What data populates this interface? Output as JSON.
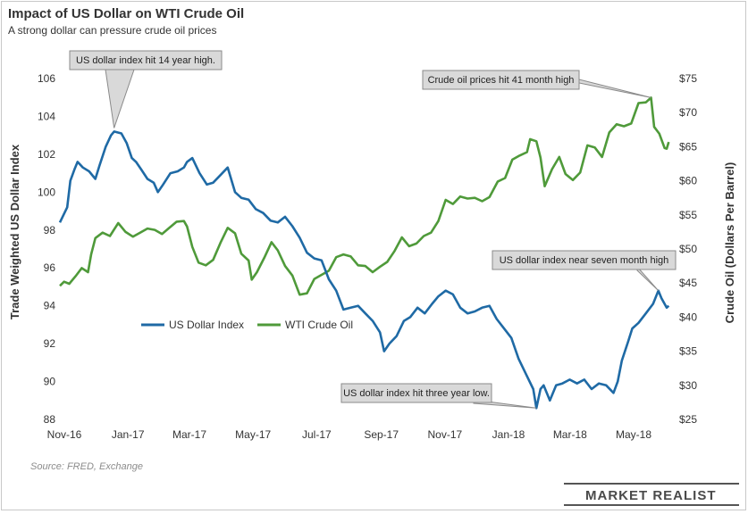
{
  "title": "Impact of US Dollar on WTI Crude Oil",
  "subtitle": "A strong dollar can pressure crude oil prices",
  "source": "Source: FRED, Exchange",
  "brand": "MARKET REALIST",
  "colors": {
    "dollar": "#1f6aa5",
    "oil": "#4f9a3a",
    "callout_fill": "#d9d9d9",
    "callout_stroke": "#8a8a8a"
  },
  "chart_data": {
    "type": "line",
    "x_tick_labels": [
      "Nov-16",
      "Jan-17",
      "Mar-17",
      "May-17",
      "Jul-17",
      "Sep-17",
      "Nov-17",
      "Jan-18",
      "Mar-18",
      "May-18"
    ],
    "y_left": {
      "label": "Trade Weighted US Dollar Index",
      "min": 88,
      "max": 106,
      "ticks": [
        "88",
        "90",
        "92",
        "94",
        "96",
        "98",
        "100",
        "102",
        "104",
        "106"
      ]
    },
    "y_right": {
      "label": "Crude Oil (Dollars  Per Barrel)",
      "min": 25,
      "max": 75,
      "ticks": [
        "$25",
        "$30",
        "$35",
        "$40",
        "$45",
        "$50",
        "$55",
        "$60",
        "$65",
        "$70",
        "$75"
      ]
    },
    "grid": false,
    "legend": {
      "position": "center-left"
    },
    "series": [
      {
        "name": "US Dollar Index",
        "axis": "left",
        "points": [
          [
            "2016-11-01",
            98.4
          ],
          [
            "2016-11-08",
            99.2
          ],
          [
            "2016-11-11",
            100.6
          ],
          [
            "2016-11-15",
            101.2
          ],
          [
            "2016-11-18",
            101.6
          ],
          [
            "2016-11-23",
            101.3
          ],
          [
            "2016-11-29",
            101.1
          ],
          [
            "2016-12-05",
            100.7
          ],
          [
            "2016-12-09",
            101.4
          ],
          [
            "2016-12-15",
            102.4
          ],
          [
            "2016-12-20",
            103.0
          ],
          [
            "2016-12-23",
            103.2
          ],
          [
            "2016-12-30",
            103.1
          ],
          [
            "2017-01-04",
            102.6
          ],
          [
            "2017-01-09",
            101.8
          ],
          [
            "2017-01-13",
            101.6
          ],
          [
            "2017-01-18",
            101.2
          ],
          [
            "2017-01-24",
            100.7
          ],
          [
            "2017-01-30",
            100.5
          ],
          [
            "2017-02-03",
            100.0
          ],
          [
            "2017-02-08",
            100.4
          ],
          [
            "2017-02-15",
            101.0
          ],
          [
            "2017-02-22",
            101.1
          ],
          [
            "2017-02-28",
            101.3
          ],
          [
            "2017-03-03",
            101.6
          ],
          [
            "2017-03-08",
            101.8
          ],
          [
            "2017-03-15",
            101.0
          ],
          [
            "2017-03-22",
            100.4
          ],
          [
            "2017-03-28",
            100.5
          ],
          [
            "2017-04-04",
            100.9
          ],
          [
            "2017-04-11",
            101.3
          ],
          [
            "2017-04-18",
            100.0
          ],
          [
            "2017-04-24",
            99.7
          ],
          [
            "2017-05-01",
            99.6
          ],
          [
            "2017-05-08",
            99.1
          ],
          [
            "2017-05-15",
            98.9
          ],
          [
            "2017-05-22",
            98.5
          ],
          [
            "2017-05-29",
            98.4
          ],
          [
            "2017-06-05",
            98.7
          ],
          [
            "2017-06-12",
            98.2
          ],
          [
            "2017-06-19",
            97.6
          ],
          [
            "2017-06-26",
            96.8
          ],
          [
            "2017-07-03",
            96.5
          ],
          [
            "2017-07-10",
            96.4
          ],
          [
            "2017-07-17",
            95.4
          ],
          [
            "2017-07-24",
            94.8
          ],
          [
            "2017-07-31",
            93.8
          ],
          [
            "2017-08-07",
            93.9
          ],
          [
            "2017-08-14",
            94.0
          ],
          [
            "2017-08-21",
            93.6
          ],
          [
            "2017-08-28",
            93.2
          ],
          [
            "2017-09-04",
            92.6
          ],
          [
            "2017-09-08",
            91.6
          ],
          [
            "2017-09-13",
            92.0
          ],
          [
            "2017-09-20",
            92.4
          ],
          [
            "2017-09-27",
            93.2
          ],
          [
            "2017-10-03",
            93.4
          ],
          [
            "2017-10-10",
            93.9
          ],
          [
            "2017-10-17",
            93.6
          ],
          [
            "2017-10-24",
            94.1
          ],
          [
            "2017-10-30",
            94.5
          ],
          [
            "2017-11-06",
            94.8
          ],
          [
            "2017-11-13",
            94.6
          ],
          [
            "2017-11-20",
            93.9
          ],
          [
            "2017-11-27",
            93.6
          ],
          [
            "2017-12-04",
            93.7
          ],
          [
            "2017-12-11",
            93.9
          ],
          [
            "2017-12-18",
            94.0
          ],
          [
            "2017-12-25",
            93.3
          ],
          [
            "2018-01-01",
            92.8
          ],
          [
            "2018-01-08",
            92.3
          ],
          [
            "2018-01-15",
            91.2
          ],
          [
            "2018-01-22",
            90.4
          ],
          [
            "2018-01-29",
            89.6
          ],
          [
            "2018-02-01",
            88.6
          ],
          [
            "2018-02-05",
            89.6
          ],
          [
            "2018-02-08",
            89.8
          ],
          [
            "2018-02-14",
            89.0
          ],
          [
            "2018-02-20",
            89.8
          ],
          [
            "2018-02-26",
            89.9
          ],
          [
            "2018-03-05",
            90.1
          ],
          [
            "2018-03-12",
            89.9
          ],
          [
            "2018-03-19",
            90.1
          ],
          [
            "2018-03-26",
            89.6
          ],
          [
            "2018-04-02",
            89.9
          ],
          [
            "2018-04-09",
            89.8
          ],
          [
            "2018-04-16",
            89.4
          ],
          [
            "2018-04-20",
            90.0
          ],
          [
            "2018-04-24",
            91.1
          ],
          [
            "2018-04-30",
            92.1
          ],
          [
            "2018-05-04",
            92.8
          ],
          [
            "2018-05-10",
            93.1
          ],
          [
            "2018-05-17",
            93.6
          ],
          [
            "2018-05-24",
            94.1
          ],
          [
            "2018-05-29",
            94.8
          ],
          [
            "2018-06-01",
            94.4
          ],
          [
            "2018-06-06",
            93.9
          ],
          [
            "2018-06-08",
            94.0
          ]
        ]
      },
      {
        "name": "WTI Crude Oil",
        "axis": "right",
        "points": [
          [
            "2016-11-01",
            44.6
          ],
          [
            "2016-11-05",
            45.2
          ],
          [
            "2016-11-10",
            44.9
          ],
          [
            "2016-11-16",
            46.0
          ],
          [
            "2016-11-22",
            47.2
          ],
          [
            "2016-11-28",
            46.6
          ],
          [
            "2016-12-01",
            49.2
          ],
          [
            "2016-12-05",
            51.6
          ],
          [
            "2016-12-12",
            52.4
          ],
          [
            "2016-12-19",
            51.9
          ],
          [
            "2016-12-27",
            53.8
          ],
          [
            "2017-01-03",
            52.5
          ],
          [
            "2017-01-10",
            51.8
          ],
          [
            "2017-01-17",
            52.4
          ],
          [
            "2017-01-24",
            53.0
          ],
          [
            "2017-01-31",
            52.8
          ],
          [
            "2017-02-07",
            52.2
          ],
          [
            "2017-02-14",
            53.1
          ],
          [
            "2017-02-21",
            54.0
          ],
          [
            "2017-02-28",
            54.1
          ],
          [
            "2017-03-03",
            53.3
          ],
          [
            "2017-03-08",
            50.3
          ],
          [
            "2017-03-14",
            48.0
          ],
          [
            "2017-03-21",
            47.6
          ],
          [
            "2017-03-28",
            48.4
          ],
          [
            "2017-04-04",
            50.9
          ],
          [
            "2017-04-11",
            53.1
          ],
          [
            "2017-04-18",
            52.3
          ],
          [
            "2017-04-24",
            49.3
          ],
          [
            "2017-05-01",
            48.3
          ],
          [
            "2017-05-04",
            45.5
          ],
          [
            "2017-05-09",
            46.6
          ],
          [
            "2017-05-16",
            48.7
          ],
          [
            "2017-05-23",
            51.0
          ],
          [
            "2017-05-29",
            49.8
          ],
          [
            "2017-06-05",
            47.5
          ],
          [
            "2017-06-12",
            46.1
          ],
          [
            "2017-06-19",
            43.3
          ],
          [
            "2017-06-26",
            43.5
          ],
          [
            "2017-07-03",
            45.6
          ],
          [
            "2017-07-10",
            46.2
          ],
          [
            "2017-07-17",
            46.8
          ],
          [
            "2017-07-24",
            48.8
          ],
          [
            "2017-07-31",
            49.2
          ],
          [
            "2017-08-07",
            48.9
          ],
          [
            "2017-08-14",
            47.6
          ],
          [
            "2017-08-21",
            47.5
          ],
          [
            "2017-08-28",
            46.6
          ],
          [
            "2017-09-04",
            47.4
          ],
          [
            "2017-09-11",
            48.1
          ],
          [
            "2017-09-18",
            49.7
          ],
          [
            "2017-09-25",
            51.7
          ],
          [
            "2017-10-02",
            50.4
          ],
          [
            "2017-10-09",
            50.8
          ],
          [
            "2017-10-16",
            51.9
          ],
          [
            "2017-10-23",
            52.4
          ],
          [
            "2017-10-30",
            54.1
          ],
          [
            "2017-11-06",
            57.2
          ],
          [
            "2017-11-13",
            56.6
          ],
          [
            "2017-11-20",
            57.7
          ],
          [
            "2017-11-27",
            57.4
          ],
          [
            "2017-12-04",
            57.5
          ],
          [
            "2017-12-11",
            57.0
          ],
          [
            "2017-12-18",
            57.6
          ],
          [
            "2017-12-26",
            59.9
          ],
          [
            "2018-01-02",
            60.4
          ],
          [
            "2018-01-09",
            63.1
          ],
          [
            "2018-01-16",
            63.7
          ],
          [
            "2018-01-23",
            64.2
          ],
          [
            "2018-01-26",
            66.1
          ],
          [
            "2018-02-01",
            65.8
          ],
          [
            "2018-02-05",
            63.4
          ],
          [
            "2018-02-09",
            59.2
          ],
          [
            "2018-02-16",
            61.7
          ],
          [
            "2018-02-23",
            63.5
          ],
          [
            "2018-03-01",
            61.0
          ],
          [
            "2018-03-08",
            60.1
          ],
          [
            "2018-03-15",
            61.2
          ],
          [
            "2018-03-22",
            65.2
          ],
          [
            "2018-03-29",
            64.9
          ],
          [
            "2018-04-05",
            63.5
          ],
          [
            "2018-04-12",
            67.1
          ],
          [
            "2018-04-19",
            68.3
          ],
          [
            "2018-04-26",
            68.0
          ],
          [
            "2018-05-03",
            68.4
          ],
          [
            "2018-05-10",
            71.4
          ],
          [
            "2018-05-17",
            71.5
          ],
          [
            "2018-05-22",
            72.2
          ],
          [
            "2018-05-25",
            67.9
          ],
          [
            "2018-05-30",
            66.9
          ],
          [
            "2018-06-04",
            64.8
          ],
          [
            "2018-06-06",
            64.7
          ],
          [
            "2018-06-08",
            65.7
          ]
        ]
      }
    ],
    "annotations": [
      {
        "text": "US dollar index hit 14 year high.",
        "series": "US Dollar Index",
        "x": "2016-12-23",
        "y": 103.2
      },
      {
        "text": "Crude oil prices hit 41 month high",
        "series": "WTI Crude Oil",
        "x": "2018-05-22",
        "y": 72.2
      },
      {
        "text": "US dollar index near seven  month high",
        "series": "US Dollar Index",
        "x": "2018-05-29",
        "y": 94.8
      },
      {
        "text": "US dollar index hit three year low.",
        "series": "US Dollar Index",
        "x": "2018-02-01",
        "y": 88.6
      }
    ]
  }
}
